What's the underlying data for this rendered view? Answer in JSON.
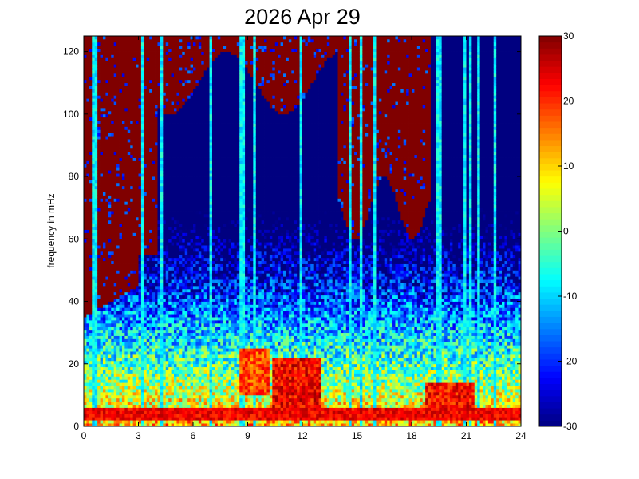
{
  "chart_data": {
    "type": "heatmap",
    "title": "2026 Apr 29",
    "xlabel": "",
    "ylabel": "frequency in mHz",
    "x_ticks": [
      "0",
      "3",
      "6",
      "9",
      "12",
      "15",
      "18",
      "21",
      "24"
    ],
    "y_ticks": [
      "0",
      "20",
      "40",
      "60",
      "80",
      "100",
      "120"
    ],
    "xlim": [
      0,
      24
    ],
    "ylim": [
      0,
      125
    ],
    "colorbar": {
      "ticks": [
        "-30",
        "-20",
        "-10",
        "0",
        "10",
        "20",
        "30"
      ],
      "range": [
        -30,
        30
      ],
      "colormap": "jet",
      "colors": [
        "#00008f",
        "#0000ff",
        "#00ffff",
        "#ffff00",
        "#ff0000",
        "#800000"
      ]
    },
    "grid": false,
    "spectral_features": {
      "baseline_band_mHz": [
        2,
        6
      ],
      "baseline_level": 25,
      "noise_floor_level": -5,
      "saturated_background_level": 30,
      "intense_regions": [
        {
          "time_h": [
            8.6,
            10.2
          ],
          "freq_mHz": [
            10,
            25
          ],
          "level": 22
        },
        {
          "time_h": [
            10.3,
            13.0
          ],
          "freq_mHz": [
            3,
            22
          ],
          "level": 27
        },
        {
          "time_h": [
            18.8,
            21.5
          ],
          "freq_mHz": [
            2,
            14
          ],
          "level": 26
        }
      ],
      "vertical_streaks_h": [
        0.6,
        3.2,
        4.3,
        7.0,
        8.7,
        9.4,
        11.9,
        14.6,
        15.2,
        16.0,
        19.5,
        20.9,
        21.2,
        21.7,
        22.6
      ]
    }
  }
}
